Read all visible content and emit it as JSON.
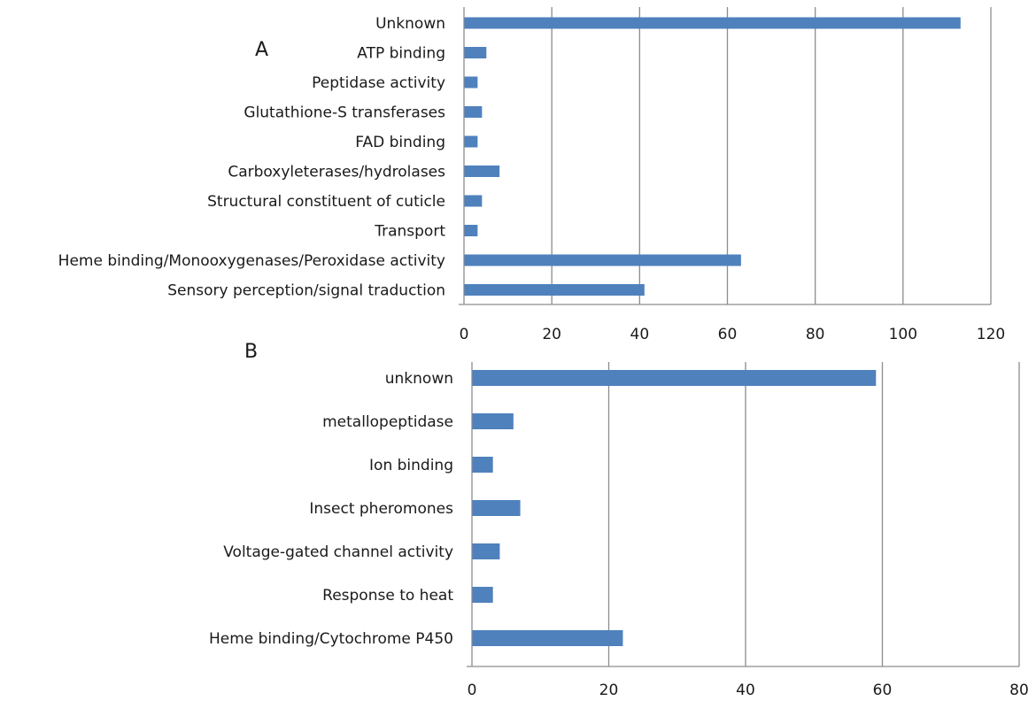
{
  "colors": {
    "bar": "#4f81bd",
    "grid": "#8c8c8c",
    "text": "#1a1a1a"
  },
  "chart_data": [
    {
      "panel_label": "A",
      "type": "bar",
      "orientation": "horizontal",
      "categories": [
        "Unknown",
        "ATP binding",
        "Peptidase activity",
        "Glutathione-S transferases",
        "FAD binding",
        "Carboxyleterases/hydrolases",
        "Structural constituent of cuticle",
        "Transport",
        "Heme binding/Monooxygenases/Peroxidase activity",
        "Sensory perception/signal traduction"
      ],
      "values": [
        113,
        5,
        3,
        4,
        3,
        8,
        4,
        3,
        63,
        41
      ],
      "xlim": [
        0,
        120
      ],
      "ticks": [
        "0",
        "20",
        "40",
        "60",
        "80",
        "100",
        "120"
      ],
      "grid": true,
      "legend": "none"
    },
    {
      "panel_label": "B",
      "type": "bar",
      "orientation": "horizontal",
      "categories": [
        "unknown",
        "metallopeptidase",
        "Ion binding",
        "Insect pheromones",
        "Voltage-gated channel activity",
        "Response to heat",
        "Heme binding/Cytochrome P450"
      ],
      "values": [
        59,
        6,
        3,
        7,
        4,
        3,
        22
      ],
      "xlim": [
        0,
        80
      ],
      "ticks": [
        "0",
        "20",
        "40",
        "60",
        "80"
      ],
      "grid": true,
      "legend": "none"
    }
  ]
}
